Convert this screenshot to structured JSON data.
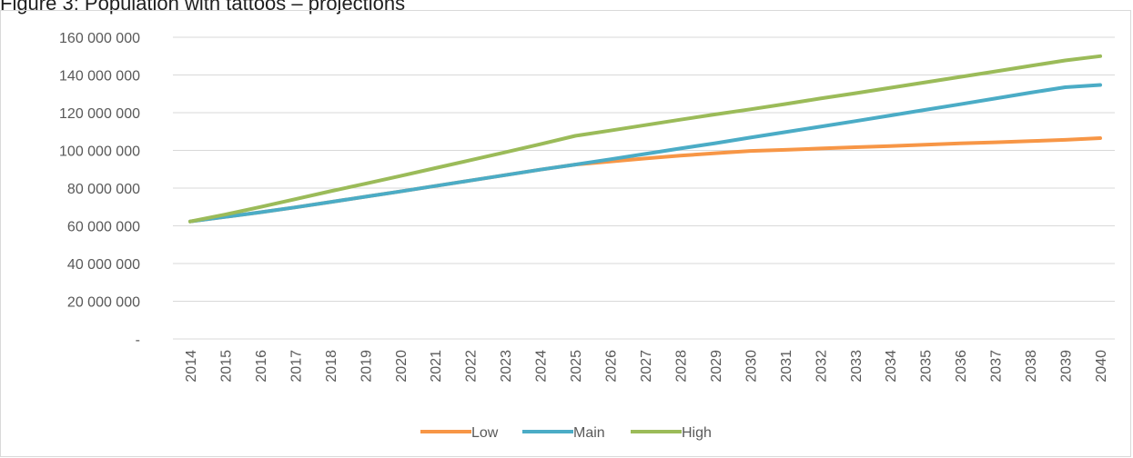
{
  "figure_caption": "Figure 3: Population with tattoos – projections",
  "chart_data": {
    "type": "line",
    "title": "",
    "xlabel": "",
    "ylabel": "",
    "ylim": [
      0,
      160000000
    ],
    "y_ticks": [
      0,
      20000000,
      40000000,
      60000000,
      80000000,
      100000000,
      120000000,
      140000000,
      160000000
    ],
    "y_tick_labels": [
      "-",
      "20 000 000",
      "40 000 000",
      "60 000 000",
      "80 000 000",
      "100 000 000",
      "120 000 000",
      "140 000 000",
      "160 000 000"
    ],
    "categories": [
      "2014",
      "2015",
      "2016",
      "2017",
      "2018",
      "2019",
      "2020",
      "2021",
      "2022",
      "2023",
      "2024",
      "2025",
      "2026",
      "2027",
      "2028",
      "2029",
      "2030",
      "2031",
      "2032",
      "2033",
      "2034",
      "2035",
      "2036",
      "2037",
      "2038",
      "2039",
      "2040"
    ],
    "grid": "horizontal",
    "legend_position": "bottom",
    "series": [
      {
        "name": "Low",
        "color": "#f79646",
        "values": [
          62300000,
          64700000,
          67200000,
          69800000,
          72600000,
          75400000,
          78200000,
          81100000,
          84000000,
          86900000,
          89800000,
          92500000,
          94100000,
          95700000,
          97200000,
          98500000,
          99700000,
          100300000,
          101000000,
          101700000,
          102300000,
          103000000,
          103700000,
          104300000,
          104900000,
          105600000,
          106500000
        ]
      },
      {
        "name": "Main",
        "color": "#4bacc6",
        "values": [
          62300000,
          64700000,
          67200000,
          69800000,
          72600000,
          75400000,
          78200000,
          81100000,
          84000000,
          86900000,
          89800000,
          92500000,
          95300000,
          98100000,
          101000000,
          103800000,
          106800000,
          109700000,
          112600000,
          115500000,
          118500000,
          121500000,
          124500000,
          127500000,
          130600000,
          133500000,
          134700000
        ]
      },
      {
        "name": "High",
        "color": "#9bbb59",
        "values": [
          62300000,
          66000000,
          70000000,
          74100000,
          78300000,
          82300000,
          86400000,
          90600000,
          94800000,
          99000000,
          103300000,
          107700000,
          110500000,
          113400000,
          116300000,
          119100000,
          121800000,
          124600000,
          127500000,
          130300000,
          133200000,
          136100000,
          139000000,
          141900000,
          144800000,
          147700000,
          150000000
        ]
      }
    ]
  }
}
